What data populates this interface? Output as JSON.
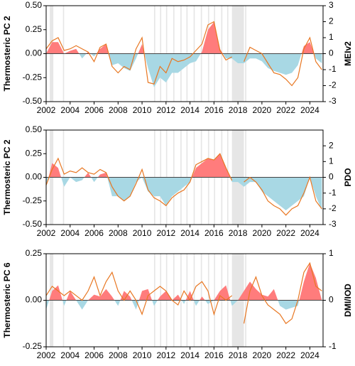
{
  "chart_data": [
    {
      "type": "line",
      "y_label": "Thermosteric PC 2",
      "y2_label": "MEIv2",
      "x": [
        2002,
        2002.5,
        2003,
        2003.5,
        2004,
        2004.5,
        2005,
        2005.5,
        2006,
        2006.5,
        2007,
        2007.5,
        2008,
        2008.5,
        2009,
        2009.5,
        2010,
        2010.5,
        2011,
        2011.5,
        2012,
        2012.5,
        2013,
        2013.5,
        2014,
        2014.5,
        2015,
        2015.5,
        2016,
        2016.5,
        2017,
        2017.5,
        2018,
        2018.5,
        2019,
        2019.5,
        2020,
        2020.5,
        2021,
        2021.5,
        2022,
        2022.5,
        2023,
        2023.5,
        2024,
        2024.5,
        2025
      ],
      "xlim": [
        2002,
        2025.1
      ],
      "xticks": [
        2002,
        2004,
        2006,
        2008,
        2010,
        2012,
        2014,
        2016,
        2018,
        2020,
        2022,
        2024
      ],
      "ylim": [
        -0.5,
        0.5
      ],
      "yticks": [
        {
          "value": -0.5,
          "label": "-0.50"
        },
        {
          "value": -0.25,
          "label": "-0.25"
        },
        {
          "value": 0,
          "label": "0.00"
        },
        {
          "value": 0.25,
          "label": "0.25"
        },
        {
          "value": 0.5,
          "label": "0.50"
        }
      ],
      "y2lim": [
        -3,
        3
      ],
      "y2ticks": [
        -3,
        -2,
        -1,
        0,
        1,
        2,
        3
      ],
      "shaded_spans": [
        [
          2002.3,
          2002.6
        ],
        [
          2003.4,
          2003.5
        ],
        [
          2011.0,
          2011.1
        ],
        [
          2011.5,
          2011.6
        ],
        [
          2012.0,
          2012.1
        ],
        [
          2012.6,
          2012.7
        ],
        [
          2013.2,
          2013.3
        ],
        [
          2013.7,
          2013.8
        ],
        [
          2014.3,
          2014.4
        ],
        [
          2014.9,
          2015.0
        ],
        [
          2015.5,
          2015.6
        ],
        [
          2016.0,
          2016.1
        ],
        [
          2016.6,
          2016.7
        ],
        [
          2017.1,
          2017.2
        ],
        [
          2017.5,
          2018.5
        ],
        [
          2018.6,
          2018.7
        ]
      ],
      "series": [
        {
          "type": "area",
          "color_positive": "#ff7c7c",
          "color_negative": "#a8d8e4",
          "values": [
            0.0,
            0.12,
            0.12,
            0.0,
            0.03,
            0.05,
            -0.05,
            0.02,
            -0.03,
            0.05,
            0.1,
            -0.12,
            -0.1,
            -0.15,
            -0.18,
            -0.05,
            0.1,
            -0.15,
            -0.35,
            -0.25,
            -0.3,
            -0.2,
            -0.2,
            -0.15,
            -0.1,
            -0.08,
            0.02,
            0.25,
            0.33,
            0.05,
            -0.05,
            -0.05,
            -0.1,
            -0.1,
            -0.05,
            -0.05,
            -0.08,
            -0.15,
            -0.18,
            -0.2,
            -0.22,
            -0.2,
            -0.12,
            0.08,
            0.12,
            -0.05,
            -0.1
          ]
        },
        {
          "type": "line",
          "axis": "y2",
          "color": "#e87722",
          "values": [
            0.3,
            0.8,
            1.0,
            0.2,
            0.3,
            0.5,
            0.3,
            0.1,
            -0.5,
            0.4,
            0.6,
            -0.8,
            -1.2,
            -0.8,
            -1.0,
            0.3,
            1.0,
            -1.8,
            -1.9,
            -0.8,
            -1.2,
            -0.3,
            -0.5,
            -0.4,
            -0.2,
            0.2,
            0.6,
            1.8,
            2.0,
            0.2,
            -0.4,
            -0.2,
            null,
            -0.5,
            0.4,
            0.2,
            0.0,
            -0.6,
            -1.2,
            -1.3,
            -1.6,
            -2.0,
            -1.5,
            0.3,
            1.0,
            -0.5,
            -1.0
          ]
        }
      ]
    },
    {
      "type": "line",
      "y_label": "Thermosteric PC 2",
      "y2_label": "PDO",
      "x": [
        2002,
        2002.5,
        2003,
        2003.5,
        2004,
        2004.5,
        2005,
        2005.5,
        2006,
        2006.5,
        2007,
        2007.5,
        2008,
        2008.5,
        2009,
        2009.5,
        2010,
        2010.5,
        2011,
        2011.5,
        2012,
        2012.5,
        2013,
        2013.5,
        2014,
        2014.5,
        2015,
        2015.5,
        2016,
        2016.5,
        2017,
        2017.5,
        2018,
        2018.5,
        2019,
        2019.5,
        2020,
        2020.5,
        2021,
        2021.5,
        2022,
        2022.5,
        2023,
        2023.5,
        2024,
        2024.5,
        2025
      ],
      "xlim": [
        2002,
        2025.1
      ],
      "xticks": [
        2002,
        2004,
        2006,
        2008,
        2010,
        2012,
        2014,
        2016,
        2018,
        2020,
        2022,
        2024
      ],
      "ylim": [
        -0.5,
        0.5
      ],
      "yticks": [
        {
          "value": -0.5,
          "label": "-0.50"
        },
        {
          "value": -0.25,
          "label": "-0.25"
        },
        {
          "value": 0,
          "label": "0.00"
        },
        {
          "value": 0.25,
          "label": "0.25"
        },
        {
          "value": 0.5,
          "label": "0.50"
        }
      ],
      "y2lim": [
        -3,
        3
      ],
      "y2ticks": [
        -3,
        -2,
        -1,
        0,
        1,
        2
      ],
      "shaded_spans": [
        [
          2002.3,
          2002.6
        ],
        [
          2003.4,
          2003.5
        ],
        [
          2011.0,
          2011.1
        ],
        [
          2011.5,
          2011.6
        ],
        [
          2012.0,
          2012.1
        ],
        [
          2012.6,
          2012.7
        ],
        [
          2013.2,
          2013.3
        ],
        [
          2013.7,
          2013.8
        ],
        [
          2014.3,
          2014.4
        ],
        [
          2014.9,
          2015.0
        ],
        [
          2015.5,
          2015.6
        ],
        [
          2016.0,
          2016.1
        ],
        [
          2016.6,
          2016.7
        ],
        [
          2017.1,
          2017.2
        ],
        [
          2017.5,
          2018.5
        ],
        [
          2018.6,
          2018.7
        ]
      ],
      "series": [
        {
          "type": "area",
          "color_positive": "#ff7c7c",
          "color_negative": "#a8d8e4",
          "values": [
            -0.1,
            0.15,
            0.1,
            -0.1,
            0.0,
            -0.05,
            -0.03,
            0.05,
            -0.05,
            0.03,
            0.05,
            -0.2,
            -0.2,
            -0.25,
            -0.2,
            -0.05,
            0.0,
            -0.15,
            -0.2,
            -0.2,
            -0.3,
            -0.2,
            -0.15,
            -0.1,
            -0.05,
            0.1,
            0.15,
            0.2,
            0.18,
            0.25,
            0.1,
            -0.05,
            -0.05,
            -0.1,
            -0.05,
            -0.05,
            -0.15,
            -0.2,
            -0.25,
            -0.3,
            -0.35,
            -0.3,
            -0.25,
            -0.2,
            0.0,
            -0.2,
            -0.35
          ]
        },
        {
          "type": "line",
          "axis": "y2",
          "color": "#e87722",
          "values": [
            -0.5,
            0.5,
            1.2,
            0.2,
            0.4,
            0.3,
            0.6,
            0.3,
            0.2,
            0.5,
            0.3,
            -0.6,
            -1.2,
            -1.5,
            -1.2,
            -0.4,
            0.5,
            -0.8,
            -1.3,
            -1.5,
            -1.8,
            -1.3,
            -1.0,
            -0.8,
            -0.3,
            0.8,
            1.0,
            1.2,
            1.1,
            1.5,
            0.6,
            -0.2,
            null,
            -0.3,
            0.0,
            -0.3,
            -0.8,
            -1.5,
            -1.8,
            -2.0,
            -2.4,
            -2.0,
            -1.8,
            -1.0,
            0.0,
            -1.5,
            -2.0
          ]
        }
      ]
    },
    {
      "type": "line",
      "y_label": "Thermosteric PC 6",
      "y2_label": "DMI/IOD",
      "x": [
        2002,
        2002.5,
        2003,
        2003.5,
        2004,
        2004.5,
        2005,
        2005.5,
        2006,
        2006.5,
        2007,
        2007.5,
        2008,
        2008.5,
        2009,
        2009.5,
        2010,
        2010.5,
        2011,
        2011.5,
        2012,
        2012.5,
        2013,
        2013.5,
        2014,
        2014.5,
        2015,
        2015.5,
        2016,
        2016.5,
        2017,
        2017.5,
        2018,
        2018.5,
        2019,
        2019.5,
        2020,
        2020.5,
        2021,
        2021.5,
        2022,
        2022.5,
        2023,
        2023.5,
        2024,
        2024.5,
        2025
      ],
      "xlim": [
        2002,
        2025.1
      ],
      "xticks": [
        2002,
        2004,
        2006,
        2008,
        2010,
        2012,
        2014,
        2016,
        2018,
        2020,
        2022,
        2024
      ],
      "ylim": [
        -0.25,
        0.25
      ],
      "yticks": [
        {
          "value": -0.25,
          "label": "-0.25"
        },
        {
          "value": 0,
          "label": "0.00"
        },
        {
          "value": 0.25,
          "label": "0.25"
        }
      ],
      "y2lim": [
        -1,
        1
      ],
      "y2ticks": [
        -1,
        0,
        1
      ],
      "shaded_spans": [
        [
          2002.3,
          2002.6
        ],
        [
          2003.4,
          2003.5
        ],
        [
          2011.0,
          2011.1
        ],
        [
          2011.5,
          2011.6
        ],
        [
          2012.0,
          2012.1
        ],
        [
          2012.6,
          2012.7
        ],
        [
          2013.2,
          2013.3
        ],
        [
          2013.7,
          2013.8
        ],
        [
          2014.3,
          2014.4
        ],
        [
          2014.9,
          2015.0
        ],
        [
          2015.5,
          2015.6
        ],
        [
          2016.0,
          2016.1
        ],
        [
          2016.6,
          2016.7
        ],
        [
          2017.1,
          2017.2
        ],
        [
          2017.5,
          2018.5
        ],
        [
          2018.6,
          2018.7
        ]
      ],
      "series": [
        {
          "type": "area",
          "color_positive": "#ff7c7c",
          "color_negative": "#a8d8e4",
          "values": [
            -0.05,
            0.05,
            0.08,
            -0.03,
            0.05,
            0.0,
            -0.05,
            0.0,
            0.03,
            0.02,
            0.06,
            0.02,
            -0.03,
            0.05,
            0.02,
            -0.05,
            0.05,
            0.06,
            -0.03,
            0.02,
            0.05,
            0.0,
            0.03,
            -0.02,
            0.05,
            -0.03,
            0.02,
            -0.02,
            0.0,
            0.05,
            0.08,
            -0.03,
            0.0,
            0.05,
            0.1,
            0.06,
            0.03,
            0.02,
            0.06,
            -0.03,
            -0.05,
            -0.04,
            -0.03,
            0.1,
            0.2,
            0.12,
            0.0
          ]
        },
        {
          "type": "line",
          "axis": "y2",
          "color": "#e87722",
          "values": [
            0.1,
            0.3,
            0.2,
            0.1,
            0.2,
            0.1,
            0.0,
            0.2,
            0.5,
            0.1,
            0.4,
            0.6,
            0.2,
            0.0,
            0.2,
            0.0,
            -0.3,
            0.1,
            0.2,
            0.3,
            0.2,
            0.0,
            -0.1,
            0.2,
            0.0,
            0.3,
            0.4,
            0.2,
            -0.3,
            0.1,
            0.0,
            0.1,
            null,
            -0.5,
            0.2,
            0.5,
            0.1,
            -0.1,
            -0.2,
            -0.3,
            -0.5,
            -0.4,
            0.0,
            0.6,
            0.8,
            0.3,
            0.2
          ]
        }
      ]
    }
  ]
}
